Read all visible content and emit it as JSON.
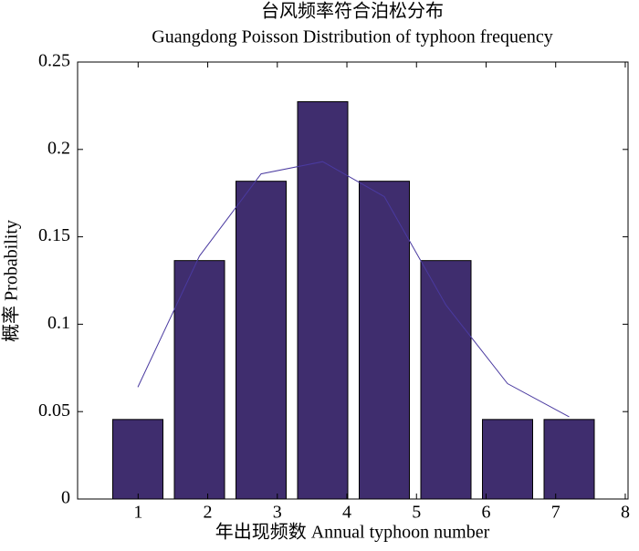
{
  "chart_data": {
    "type": "bar",
    "title": "台风频率符合泊松分布",
    "subtitle": "Guangdong Poisson Distribution of typhoon frequency",
    "xlabel": "年出现频数 Annual typhoon number",
    "ylabel": "概率 Probability",
    "categories": [
      null,
      null,
      null,
      null,
      null,
      null,
      null,
      null
    ],
    "series": [
      {
        "type": "bar",
        "color": "#3f2d6e",
        "values": [
          0.0455,
          0.1364,
          0.1818,
          0.2273,
          0.1818,
          0.1364,
          0.0455,
          0.0455
        ]
      },
      {
        "type": "line",
        "color": "#4a3aa0",
        "values": [
          0.064,
          0.139,
          0.186,
          0.193,
          0.173,
          0.111,
          0.066,
          0.047
        ]
      }
    ],
    "xlim": [
      0.13,
      8.04
    ],
    "xticks": [
      1,
      2,
      3,
      4,
      5,
      6,
      7,
      8
    ],
    "ylim": [
      0,
      0.25
    ],
    "yticks": [
      0,
      0.05,
      0.1,
      0.15,
      0.2,
      0.25
    ]
  }
}
